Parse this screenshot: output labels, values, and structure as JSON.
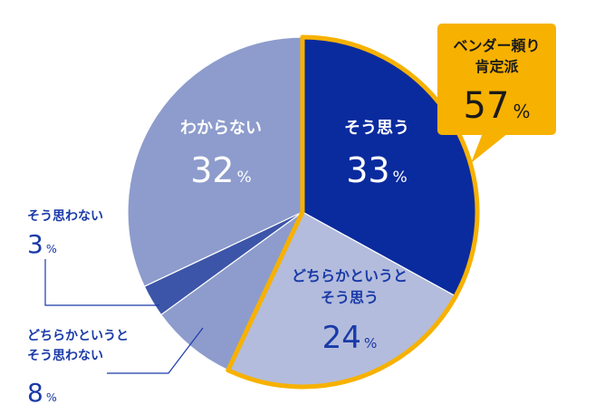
{
  "chart_data": {
    "type": "pie",
    "slices": [
      {
        "label": "そう思う",
        "value": 33,
        "color": "#0a2b9e",
        "label_color": "#ffffff"
      },
      {
        "label": "どちらかというと\nそう思う",
        "value": 24,
        "color": "#b3bcdc",
        "label_color": "#1a3aa8"
      },
      {
        "label": "どちらかというと\nそう思わない",
        "value": 8,
        "color": "#8d9ccc",
        "label_color": "#1a3aa8"
      },
      {
        "label": "そう思わない",
        "value": 3,
        "color": "#3d55a8",
        "label_color": "#1a3aa8"
      },
      {
        "label": "わからない",
        "value": 32,
        "color": "#8d9ccc",
        "label_color": "#ffffff"
      }
    ],
    "value_suffix": "%",
    "highlight": {
      "label": "ベンダー頼り\n肯定派",
      "value": 57,
      "color": "#f7b100",
      "covers": [
        "そう思う",
        "どちらかというと\nそう思う"
      ]
    }
  }
}
